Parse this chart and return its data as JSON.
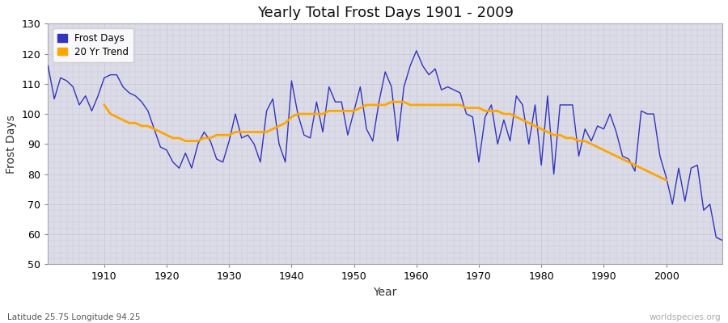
{
  "title": "Yearly Total Frost Days 1901 - 2009",
  "xlabel": "Year",
  "ylabel": "Frost Days",
  "subtitle": "Latitude 25.75 Longitude 94.25",
  "watermark": "worldspecies.org",
  "xlim": [
    1901,
    2009
  ],
  "ylim": [
    50,
    130
  ],
  "yticks": [
    50,
    60,
    70,
    80,
    90,
    100,
    110,
    120,
    130
  ],
  "xticks": [
    1910,
    1920,
    1930,
    1940,
    1950,
    1960,
    1970,
    1980,
    1990,
    2000
  ],
  "frost_color": "#3333bb",
  "trend_color": "#FFA500",
  "bg_color": "#dcdce8",
  "fig_color": "#ffffff",
  "legend_frost": "Frost Days",
  "legend_trend": "20 Yr Trend",
  "years": [
    1901,
    1902,
    1903,
    1904,
    1905,
    1906,
    1907,
    1908,
    1909,
    1910,
    1911,
    1912,
    1913,
    1914,
    1915,
    1916,
    1917,
    1918,
    1919,
    1920,
    1921,
    1922,
    1923,
    1924,
    1925,
    1926,
    1927,
    1928,
    1929,
    1930,
    1931,
    1932,
    1933,
    1934,
    1935,
    1936,
    1937,
    1938,
    1939,
    1940,
    1941,
    1942,
    1943,
    1944,
    1945,
    1946,
    1947,
    1948,
    1949,
    1950,
    1951,
    1952,
    1953,
    1954,
    1955,
    1956,
    1957,
    1958,
    1959,
    1960,
    1961,
    1962,
    1963,
    1964,
    1965,
    1966,
    1967,
    1968,
    1969,
    1970,
    1971,
    1972,
    1973,
    1974,
    1975,
    1976,
    1977,
    1978,
    1979,
    1980,
    1981,
    1982,
    1983,
    1984,
    1985,
    1986,
    1987,
    1988,
    1989,
    1990,
    1991,
    1992,
    1993,
    1994,
    1995,
    1996,
    1997,
    1998,
    1999,
    2000,
    2001,
    2002,
    2003,
    2004,
    2005,
    2006,
    2007,
    2008,
    2009
  ],
  "frost_days": [
    116,
    105,
    112,
    111,
    109,
    103,
    106,
    101,
    106,
    112,
    113,
    113,
    109,
    107,
    106,
    104,
    101,
    95,
    89,
    88,
    84,
    82,
    87,
    82,
    90,
    94,
    91,
    85,
    84,
    91,
    100,
    92,
    93,
    90,
    84,
    101,
    105,
    90,
    84,
    111,
    100,
    93,
    92,
    104,
    94,
    109,
    104,
    104,
    93,
    101,
    109,
    95,
    91,
    104,
    114,
    109,
    91,
    109,
    116,
    121,
    116,
    113,
    115,
    108,
    109,
    108,
    107,
    100,
    99,
    84,
    99,
    103,
    90,
    98,
    91,
    106,
    103,
    90,
    103,
    83,
    106,
    80,
    103,
    103,
    103,
    86,
    95,
    91,
    96,
    95,
    100,
    94,
    86,
    85,
    81,
    101,
    100,
    100,
    86,
    79,
    70,
    82,
    71,
    82,
    83,
    68,
    70,
    59,
    58
  ],
  "trend_years": [
    1910,
    1911,
    1912,
    1913,
    1914,
    1915,
    1916,
    1917,
    1918,
    1919,
    1920,
    1921,
    1922,
    1923,
    1924,
    1925,
    1926,
    1927,
    1928,
    1929,
    1930,
    1931,
    1932,
    1933,
    1934,
    1935,
    1936,
    1937,
    1938,
    1939,
    1940,
    1941,
    1942,
    1943,
    1944,
    1945,
    1946,
    1947,
    1948,
    1949,
    1950,
    1951,
    1952,
    1953,
    1954,
    1955,
    1956,
    1957,
    1958,
    1959,
    1960,
    1961,
    1962,
    1963,
    1964,
    1965,
    1966,
    1967,
    1968,
    1969,
    1970,
    1971,
    1972,
    1973,
    1974,
    1975,
    1976,
    1977,
    1978,
    1979,
    1980,
    1981,
    1982,
    1983,
    1984,
    1985,
    1986,
    1987,
    1988,
    1989,
    1990,
    1991,
    1992,
    1993,
    1994,
    1995,
    1996,
    1997,
    1998,
    1999,
    2000
  ],
  "trend_values": [
    103,
    100,
    99,
    98,
    97,
    97,
    96,
    96,
    95,
    94,
    93,
    92,
    92,
    91,
    91,
    91,
    92,
    92,
    93,
    93,
    93,
    94,
    94,
    94,
    94,
    94,
    94,
    95,
    96,
    97,
    99,
    100,
    100,
    100,
    100,
    100,
    101,
    101,
    101,
    101,
    101,
    102,
    103,
    103,
    103,
    103,
    104,
    104,
    104,
    103,
    103,
    103,
    103,
    103,
    103,
    103,
    103,
    103,
    102,
    102,
    102,
    101,
    101,
    101,
    100,
    100,
    99,
    98,
    97,
    96,
    95,
    94,
    93,
    93,
    92,
    92,
    91,
    91,
    90,
    89,
    88,
    87,
    86,
    85,
    84,
    83,
    82,
    81,
    80,
    79,
    78
  ]
}
